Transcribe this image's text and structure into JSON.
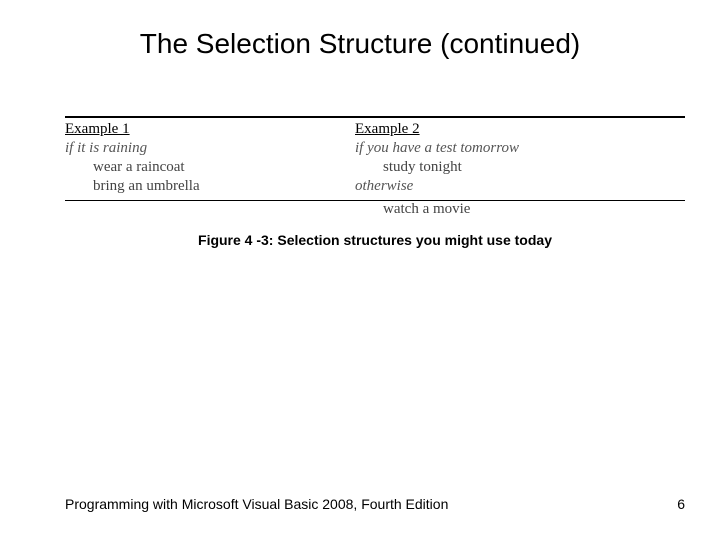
{
  "title": "The Selection Structure (continued)",
  "figure": {
    "example1": {
      "label": "Example 1",
      "condition": "if it is raining",
      "stmt1": "wear a raincoat",
      "stmt2": "bring an umbrella"
    },
    "example2": {
      "label": "Example 2",
      "condition": "if you have a test tomorrow",
      "stmt1": "study tonight",
      "otherwise": "otherwise",
      "stmt2": "watch a movie"
    },
    "caption": "Figure 4 -3: Selection structures you might use today"
  },
  "footer": {
    "book": "Programming with Microsoft Visual Basic 2008, Fourth Edition",
    "page": "6"
  }
}
